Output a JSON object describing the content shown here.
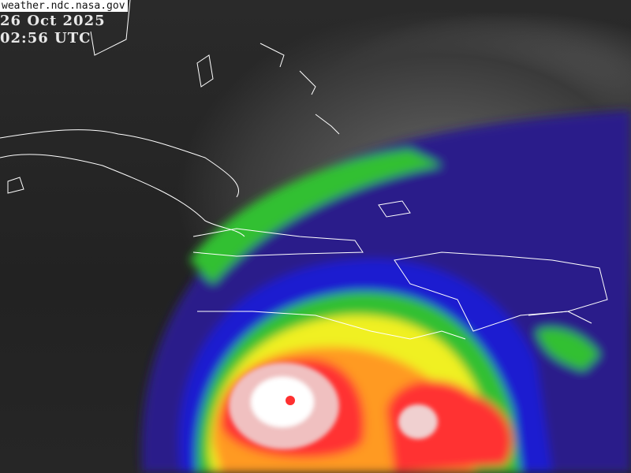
{
  "source_label": "weather.ndc.nasa.gov",
  "date": "26 Oct 2025",
  "time": "02:56 UTC",
  "colors": {
    "eye_wall": "#ffffff",
    "inner": "#ff3030",
    "ring_orange": "#ff9a20",
    "ring_yellow": "#f0f020",
    "ring_green": "#30d030",
    "ring_blue": "#1a1ad0",
    "ring_purple": "#5a1a9a",
    "coastline": "#ffffff"
  },
  "imagery": "infrared-enhanced-satellite"
}
